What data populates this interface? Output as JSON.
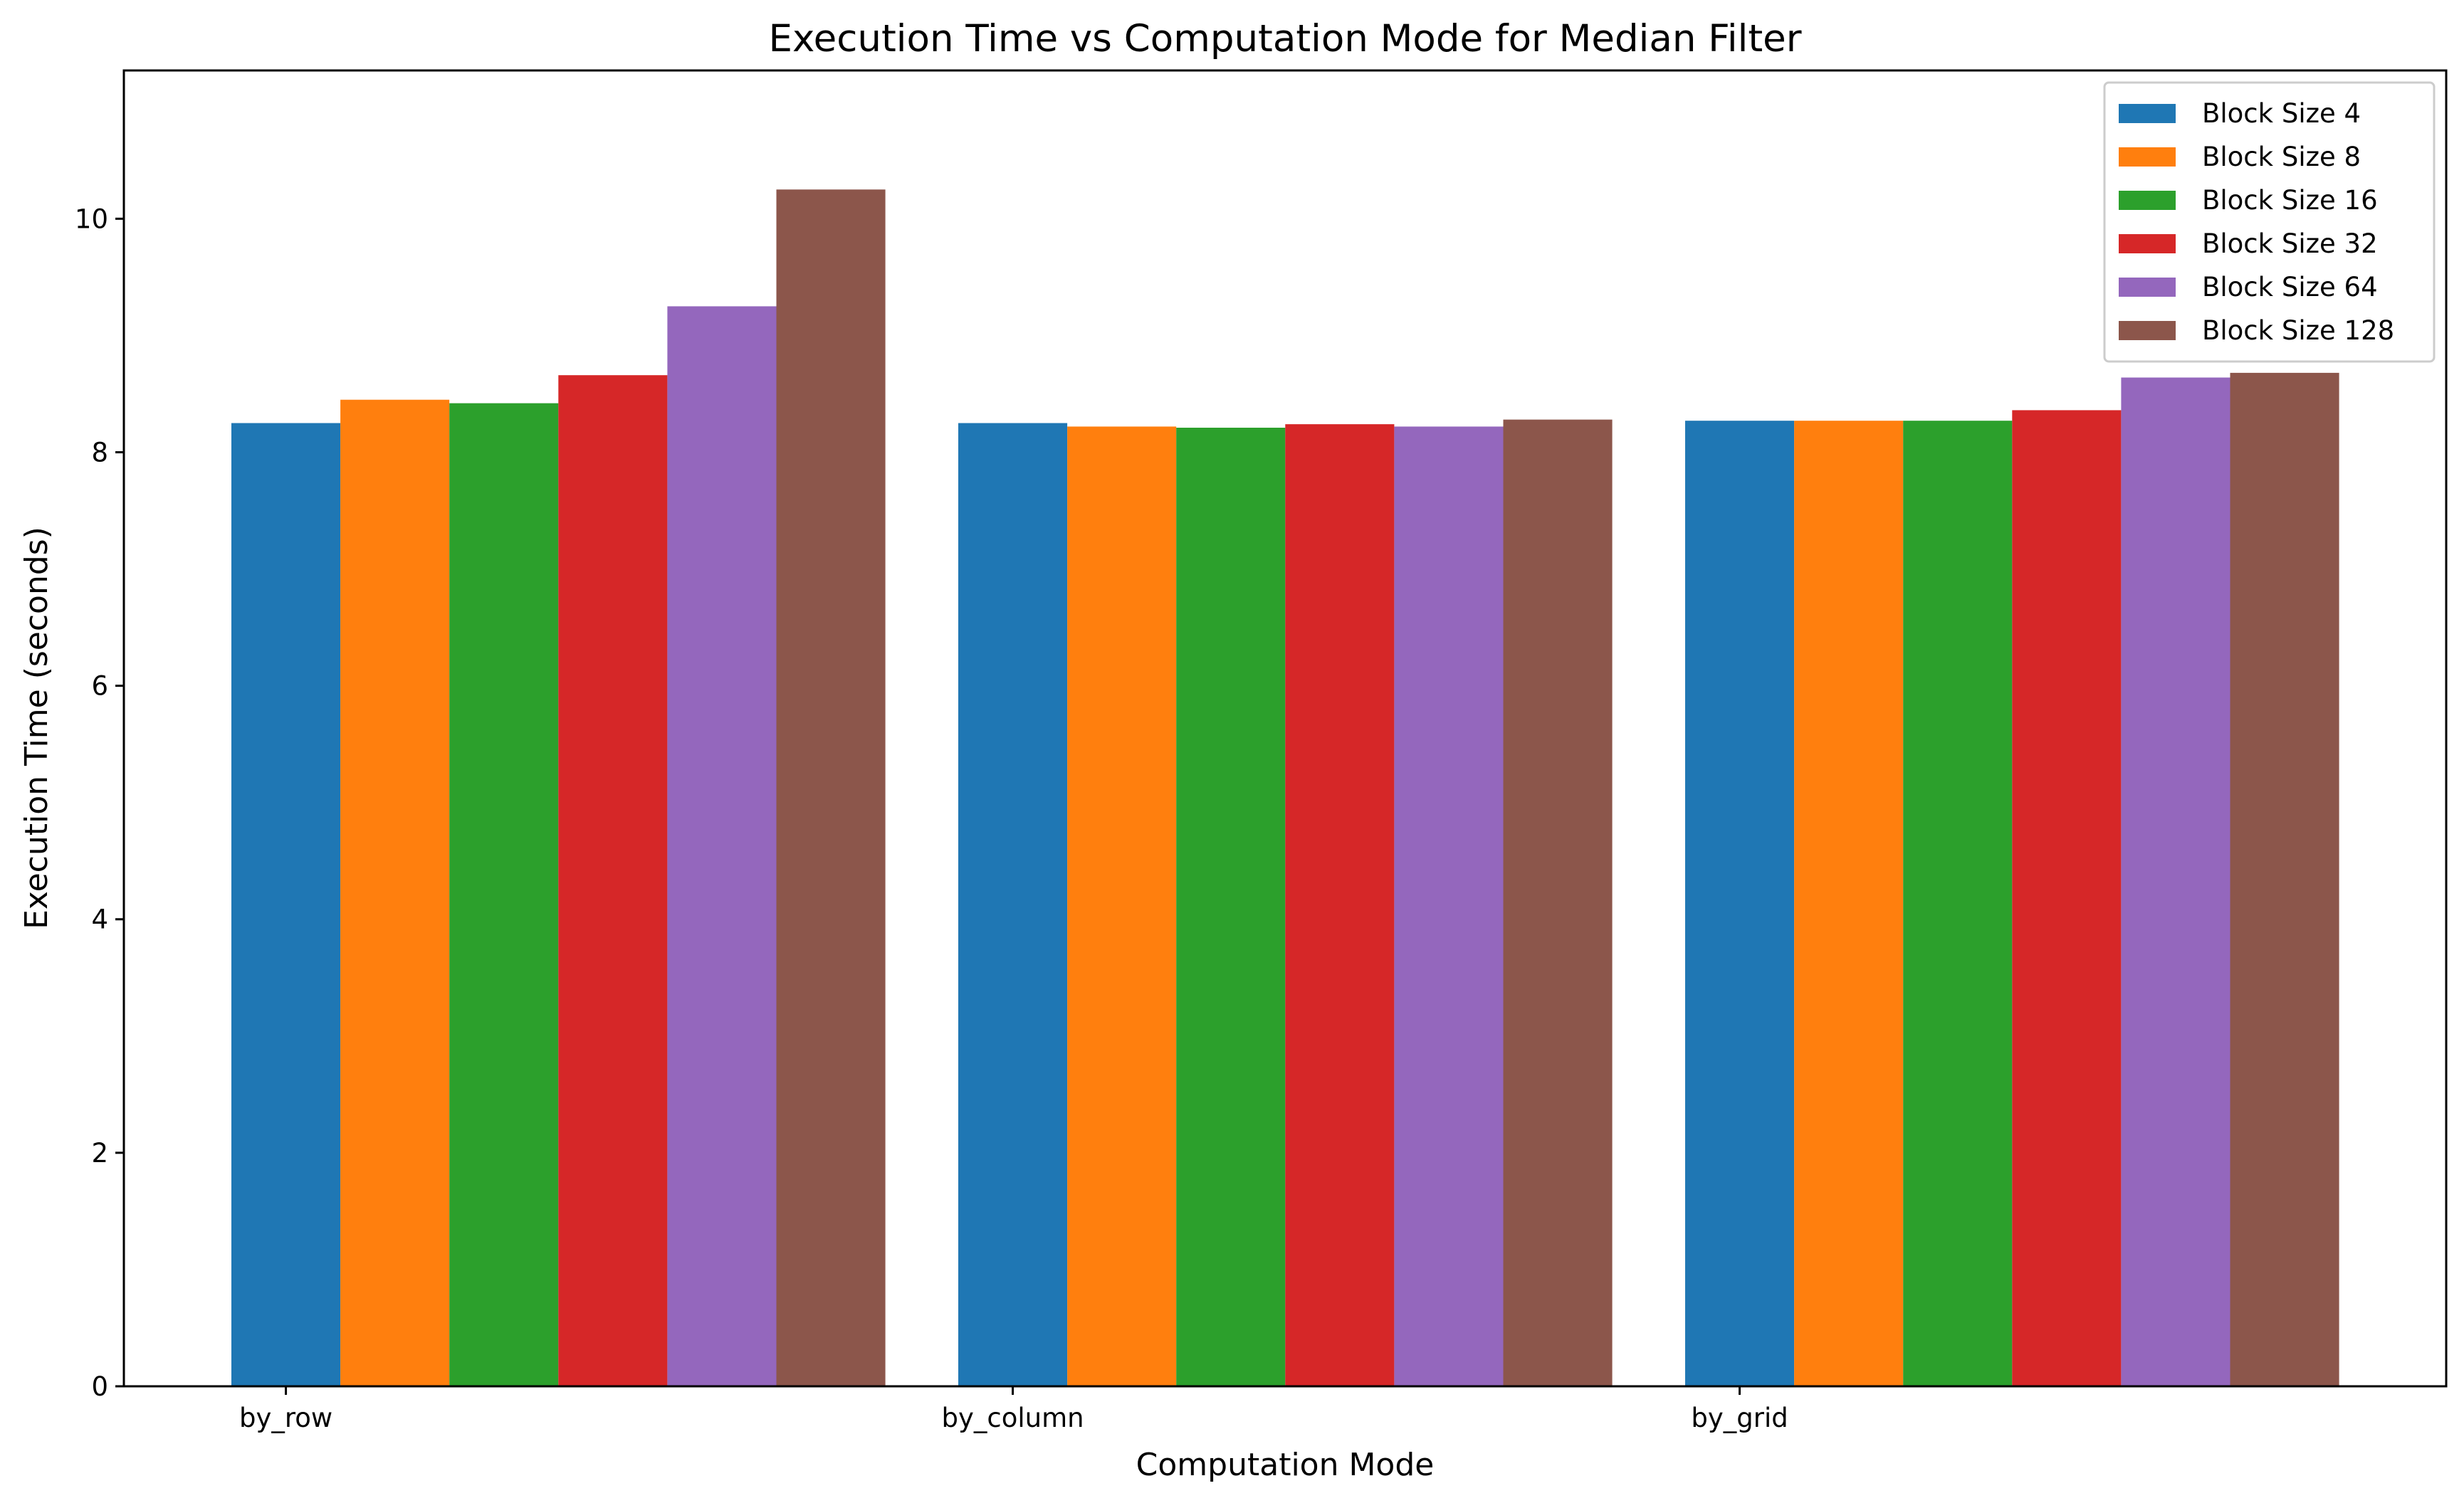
{
  "chart_data": {
    "type": "bar",
    "title": "Execution Time vs Computation Mode for Median Filter",
    "xlabel": "Computation Mode",
    "ylabel": "Execution Time (seconds)",
    "categories": [
      "by_row",
      "by_column",
      "by_grid"
    ],
    "ylim": [
      0,
      11.27
    ],
    "yticks": [
      0,
      2,
      4,
      6,
      8,
      10
    ],
    "grid": false,
    "legend_position": "top-right",
    "series": [
      {
        "name": "Block Size 4",
        "color": "#1f77b4",
        "values": [
          8.25,
          8.25,
          8.27
        ]
      },
      {
        "name": "Block Size 8",
        "color": "#ff7f0e",
        "values": [
          8.45,
          8.22,
          8.27
        ]
      },
      {
        "name": "Block Size 16",
        "color": "#2ca02c",
        "values": [
          8.42,
          8.21,
          8.27
        ]
      },
      {
        "name": "Block Size 32",
        "color": "#d62728",
        "values": [
          8.66,
          8.24,
          8.36
        ]
      },
      {
        "name": "Block Size 64",
        "color": "#9467bd",
        "values": [
          9.25,
          8.22,
          8.64
        ]
      },
      {
        "name": "Block Size 128",
        "color": "#8c564b",
        "values": [
          10.25,
          8.28,
          8.68
        ]
      }
    ]
  }
}
